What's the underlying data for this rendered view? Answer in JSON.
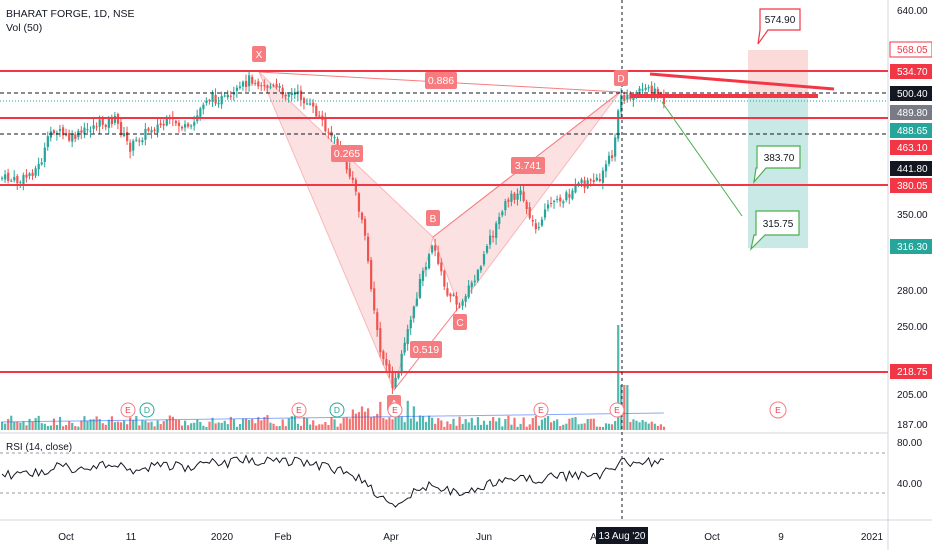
{
  "header": {
    "symbol_line": "BHARAT FORGE, 1D, NSE",
    "volume_label": "Vol (50)"
  },
  "rsi_label": "RSI (14, close)",
  "colors": {
    "up": "#26a69a",
    "down": "#ef5350",
    "level_line": "#f23645",
    "pattern_fill": "#f8c9c9",
    "pattern_stroke": "#f77c80",
    "target_green": "#4caf50",
    "rsi_line": "#131722"
  },
  "chart_data": {
    "type": "candlestick",
    "title": "BHARAT FORGE, 1D, NSE",
    "ylim": [
      184,
      655
    ],
    "price_axis_ticks": [
      "640.00",
      "350.00",
      "280.00",
      "250.00",
      "205.00",
      "187.00"
    ],
    "time_axis_ticks": [
      "Oct",
      "11",
      "2020",
      "Feb",
      "Apr",
      "Jun",
      "Aug",
      "Oct",
      "9",
      "2021"
    ],
    "current_date_label": "13 Aug '20",
    "price_badges": [
      {
        "label": "568.05",
        "value": 568.05,
        "style": "outline"
      },
      {
        "label": "534.70",
        "value": 534.7,
        "style": "red"
      },
      {
        "label": "500.40",
        "value": 500.4,
        "style": "dark"
      },
      {
        "label": "489.80",
        "value": 489.8,
        "style": "grey"
      },
      {
        "label": "488.65",
        "value": 488.65,
        "style": "green"
      },
      {
        "label": "463.10",
        "value": 463.1,
        "style": "red"
      },
      {
        "label": "441.80",
        "value": 441.8,
        "style": "dark"
      },
      {
        "label": "380.05",
        "value": 380.05,
        "style": "red"
      },
      {
        "label": "316.30",
        "value": 316.3,
        "style": "green"
      },
      {
        "label": "218.75",
        "value": 218.75,
        "style": "red"
      }
    ],
    "horizontal_levels": [
      534.7,
      463.1,
      380.05,
      218.75
    ],
    "dashed_levels": [
      500.4,
      441.8
    ],
    "pattern_points": [
      {
        "label": "X",
        "date": "2020-01-10",
        "price": 534
      },
      {
        "label": "A",
        "date": "2020-03-30",
        "price": 212
      },
      {
        "label": "B",
        "date": "2020-04-30",
        "price": 340
      },
      {
        "label": "C",
        "date": "2020-05-18",
        "price": 268
      },
      {
        "label": "D",
        "date": "2020-08-05",
        "price": 520
      }
    ],
    "ratio_labels": [
      "0.886",
      "0.265",
      "3.741",
      "0.519"
    ],
    "targets": [
      {
        "label": "574.90",
        "value": 574.9
      },
      {
        "label": "383.70",
        "value": 383.7
      },
      {
        "label": "315.75",
        "value": 315.75
      }
    ],
    "event_markers": [
      "E",
      "D",
      "E",
      "D",
      "E",
      "E",
      "E",
      "E"
    ],
    "rsi": {
      "levels": [
        "80.00",
        "40.00"
      ],
      "upper_band": 70,
      "lower_band": 30
    }
  }
}
